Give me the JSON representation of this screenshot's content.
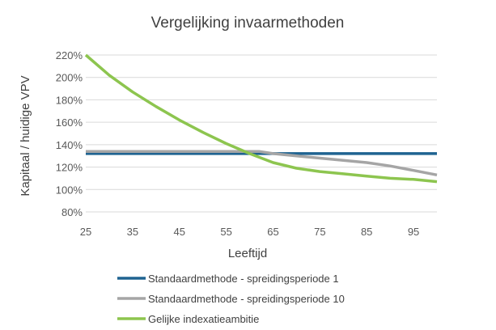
{
  "chart_data": {
    "type": "line",
    "title": "Vergelijking invaarmethoden",
    "xlabel": "Leeftijd",
    "ylabel": "Kapitaal / huidige VPV",
    "xlim": [
      25,
      100
    ],
    "ylim": [
      0.8,
      2.2
    ],
    "x_ticks": [
      25,
      35,
      45,
      55,
      65,
      75,
      85,
      95
    ],
    "x_tick_labels": [
      "25",
      "35",
      "45",
      "55",
      "65",
      "75",
      "85",
      "95"
    ],
    "y_ticks": [
      0.8,
      1.0,
      1.2,
      1.4,
      1.6,
      1.8,
      2.0,
      2.2
    ],
    "y_tick_labels": [
      "80%",
      "100%",
      "120%",
      "140%",
      "160%",
      "180%",
      "200%",
      "220%"
    ],
    "grid": "horizontal",
    "legend_position": "bottom",
    "series": [
      {
        "name": "Standaardmethode - spreidingsperiode 1",
        "color": "#1F6391",
        "x": [
          25,
          100
        ],
        "values": [
          1.32,
          1.32
        ]
      },
      {
        "name": "Standaardmethode - spreidingsperiode 10",
        "color": "#A5A5A5",
        "x": [
          25,
          30,
          35,
          40,
          45,
          50,
          55,
          60,
          62,
          65,
          70,
          75,
          80,
          85,
          90,
          95,
          100
        ],
        "values": [
          1.34,
          1.34,
          1.34,
          1.34,
          1.34,
          1.34,
          1.34,
          1.34,
          1.34,
          1.32,
          1.3,
          1.28,
          1.26,
          1.24,
          1.21,
          1.17,
          1.13
        ]
      },
      {
        "name": "Gelijke indexatieambitie",
        "color": "#8DC54F",
        "x": [
          25,
          30,
          35,
          40,
          45,
          50,
          55,
          60,
          65,
          70,
          75,
          80,
          85,
          90,
          95,
          100
        ],
        "values": [
          2.2,
          2.02,
          1.87,
          1.74,
          1.62,
          1.51,
          1.41,
          1.32,
          1.24,
          1.19,
          1.16,
          1.14,
          1.12,
          1.1,
          1.09,
          1.07
        ]
      }
    ]
  }
}
